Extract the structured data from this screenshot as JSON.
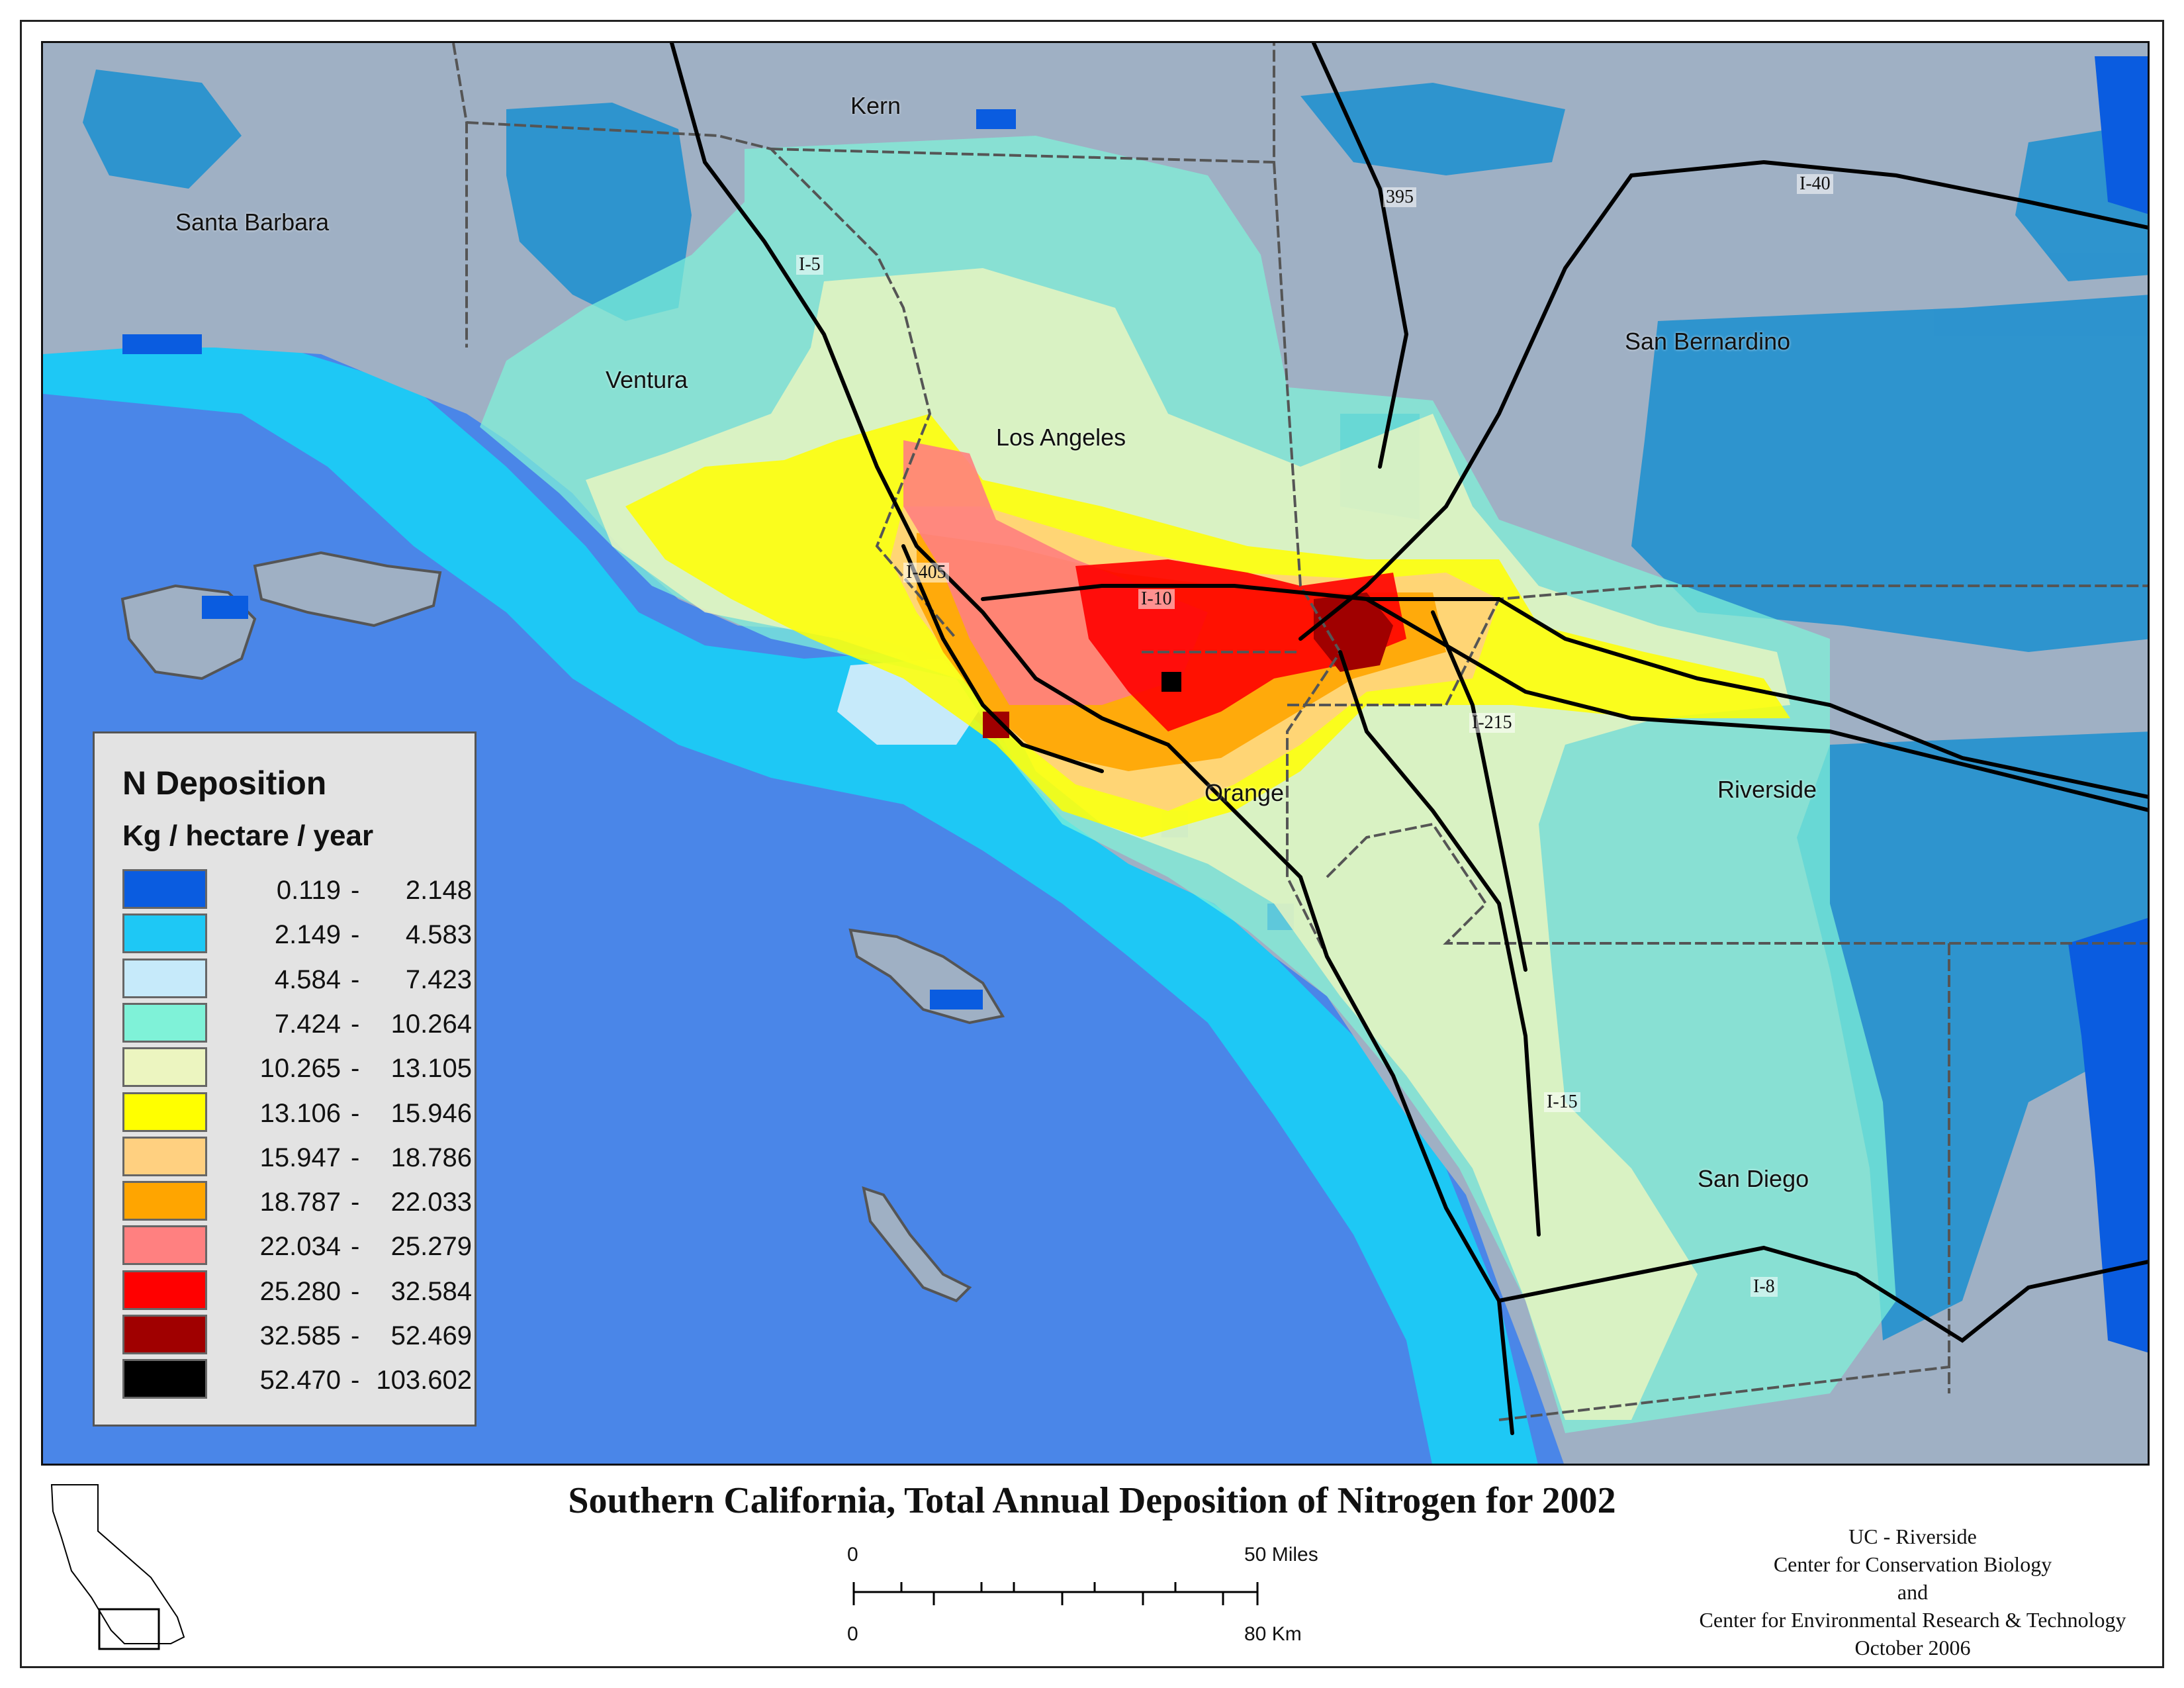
{
  "map": {
    "places": {
      "kern": "Kern",
      "santa_barbara": "Santa Barbara",
      "ventura": "Ventura",
      "los_angeles": "Los Angeles",
      "san_bernardino": "San Bernardino",
      "orange": "Orange",
      "riverside": "Riverside",
      "san_diego": "San Diego"
    },
    "roads": {
      "i5": "I-5",
      "i395": "395",
      "i40": "I-40",
      "i405": "I-405",
      "i10": "I-10",
      "i215": "I-215",
      "i15": "I-15",
      "i8": "I-8"
    },
    "colors": {
      "ocean": "#4a86e8",
      "terrain": "#9fb0c4",
      "c1": "#0a5ce0",
      "c2": "#1ec8f5",
      "c3": "#c6eafa",
      "c4": "#7ff2d8",
      "c5": "#ecf5c0",
      "c6": "#ffff00",
      "c7": "#ffd080",
      "c8": "#ffa500",
      "c9": "#ff8080",
      "c10": "#ff0000",
      "c11": "#a00000",
      "c12": "#000000",
      "roads": "#000000",
      "boundaries": "#555555"
    }
  },
  "legend": {
    "title": "N Deposition",
    "units": "Kg / hectare / year",
    "classes": [
      {
        "min": "0.119",
        "max": "2.148",
        "color": "#0a5ce0"
      },
      {
        "min": "2.149",
        "max": "4.583",
        "color": "#1ec8f5"
      },
      {
        "min": "4.584",
        "max": "7.423",
        "color": "#c6eafa"
      },
      {
        "min": "7.424",
        "max": "10.264",
        "color": "#7ff2d8"
      },
      {
        "min": "10.265",
        "max": "13.105",
        "color": "#ecf5c0"
      },
      {
        "min": "13.106",
        "max": "15.946",
        "color": "#ffff00"
      },
      {
        "min": "15.947",
        "max": "18.786",
        "color": "#ffd080"
      },
      {
        "min": "18.787",
        "max": "22.033",
        "color": "#ffa500"
      },
      {
        "min": "22.034",
        "max": "25.279",
        "color": "#ff8080"
      },
      {
        "min": "25.280",
        "max": "32.584",
        "color": "#ff0000"
      },
      {
        "min": "32.585",
        "max": "52.469",
        "color": "#a00000"
      },
      {
        "min": "52.470",
        "max": "103.602",
        "color": "#000000"
      }
    ]
  },
  "title": "Southern California, Total Annual Deposition of Nitrogen for 2002",
  "scale": {
    "miles_zero": "0",
    "miles_end": "50 Miles",
    "km_zero": "0",
    "km_end": "80 Km"
  },
  "credits": [
    "UC - Riverside",
    "Center for Conservation Biology",
    "and",
    "Center for Environmental Research & Technology",
    "October 2006"
  ]
}
